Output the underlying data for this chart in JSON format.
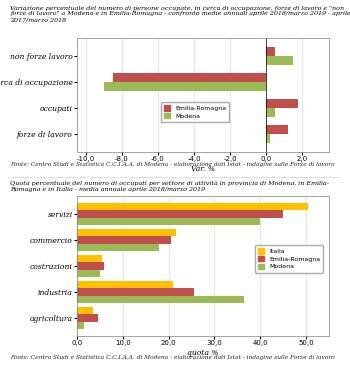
{
  "chart1": {
    "title_line1": "Variazione percentuale del numero di persone occupate, in cerca di occupazione, forze di lavoro e \"non",
    "title_line2": "forze di lavoro\" a Modena e in Emilia-Romagna - confronto medie annuali aprile 2018/marzo 2019 - aprile",
    "title_line3": "2017/marzo 2018",
    "categories": [
      "forze di lavoro",
      "occupati",
      "in cerca di occupazione",
      "non forze lavoro"
    ],
    "emilia_romagna": [
      1.2,
      1.8,
      -8.5,
      0.5
    ],
    "modena": [
      0.2,
      0.5,
      -9.0,
      1.5
    ],
    "color_er": "#C0504D",
    "color_modena": "#9BBB59",
    "xlabel": "Var. %",
    "xlim": [
      -10.5,
      3.5
    ],
    "xticks": [
      -10.0,
      -8.0,
      -6.0,
      -4.0,
      -2.0,
      0.0,
      2.0
    ],
    "source": "Fonte: Centro Studi e Statistica C.C.I.A.A. di Modena - elaborazione dati Istat - indagine sulle Forze di lavoro"
  },
  "chart2": {
    "title_line1": "Quota percentuale del numero di occupati per settore di attività in provincia di Modena, in Emilia-",
    "title_line2": "Romagna e in Italia - media annuale aprile 2018/marzo 2019",
    "categories": [
      "agricoltura",
      "industria",
      "costruzioni",
      "commercio",
      "servizi"
    ],
    "italia": [
      3.5,
      21.0,
      5.5,
      21.5,
      50.5
    ],
    "emilia_romagna": [
      4.5,
      25.5,
      6.0,
      20.5,
      45.0
    ],
    "modena": [
      1.5,
      36.5,
      5.0,
      18.0,
      40.0
    ],
    "color_italia": "#FFC000",
    "color_er": "#C0504D",
    "color_modena": "#9BBB59",
    "xlabel": "quota %",
    "xlim": [
      0,
      55
    ],
    "xticks": [
      0.0,
      10.0,
      20.0,
      30.0,
      40.0,
      50.0
    ],
    "source": "Fonte: Centro Studi e Statistica C.C.I.A.A. di Modena - elaborazione dati Istat - indagine sulle Forze di lavoro"
  }
}
